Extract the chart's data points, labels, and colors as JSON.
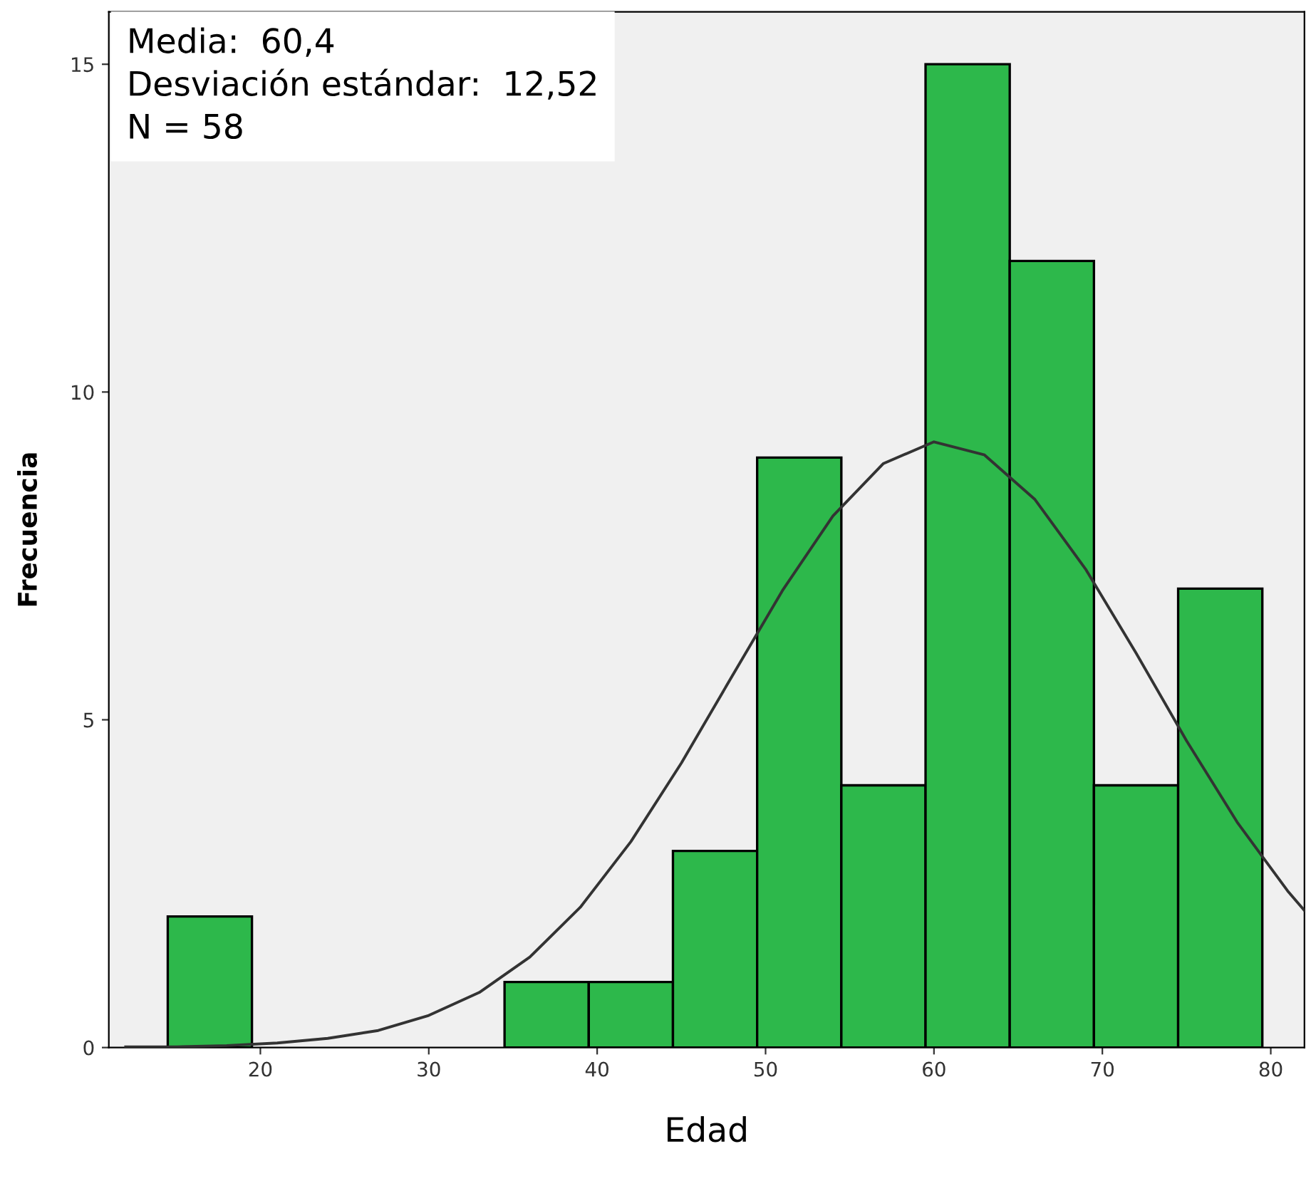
{
  "chart_data": {
    "type": "histogram",
    "xlabel": "Edad",
    "ylabel": "Frecuencia",
    "bins": [
      14.5,
      19.5,
      24.5,
      29.5,
      34.5,
      39.5,
      44.5,
      49.5,
      54.5,
      59.5,
      64.5,
      69.5,
      74.5,
      79.5
    ],
    "values": [
      2,
      0,
      0,
      0,
      1,
      1,
      3,
      9,
      4,
      15,
      12,
      4,
      7
    ],
    "color": "#2db84b",
    "series": [
      {
        "type": "line",
        "color": "#333333",
        "x": [
          12,
          15,
          18,
          21,
          24,
          27,
          30,
          33,
          36,
          39,
          42,
          45,
          48,
          51,
          54,
          57,
          60,
          63,
          66,
          69,
          72,
          75,
          78,
          81,
          82
        ],
        "values": [
          0.01,
          0.01,
          0.03,
          0.07,
          0.14,
          0.26,
          0.49,
          0.84,
          1.38,
          2.14,
          3.14,
          4.34,
          5.66,
          6.97,
          8.11,
          8.91,
          9.24,
          9.04,
          8.36,
          7.3,
          6.02,
          4.68,
          3.44,
          2.39,
          2.09
        ]
      }
    ],
    "xlim": [
      11,
      82
    ],
    "ylim": [
      0,
      15.8
    ],
    "xticks": [
      20,
      30,
      40,
      50,
      60,
      70,
      80
    ],
    "yticks": [
      0,
      5,
      10,
      15
    ],
    "grid": false,
    "annotations": [
      "Media:  60,4",
      "Desviación estándar:  12,52",
      "N = 58"
    ]
  }
}
